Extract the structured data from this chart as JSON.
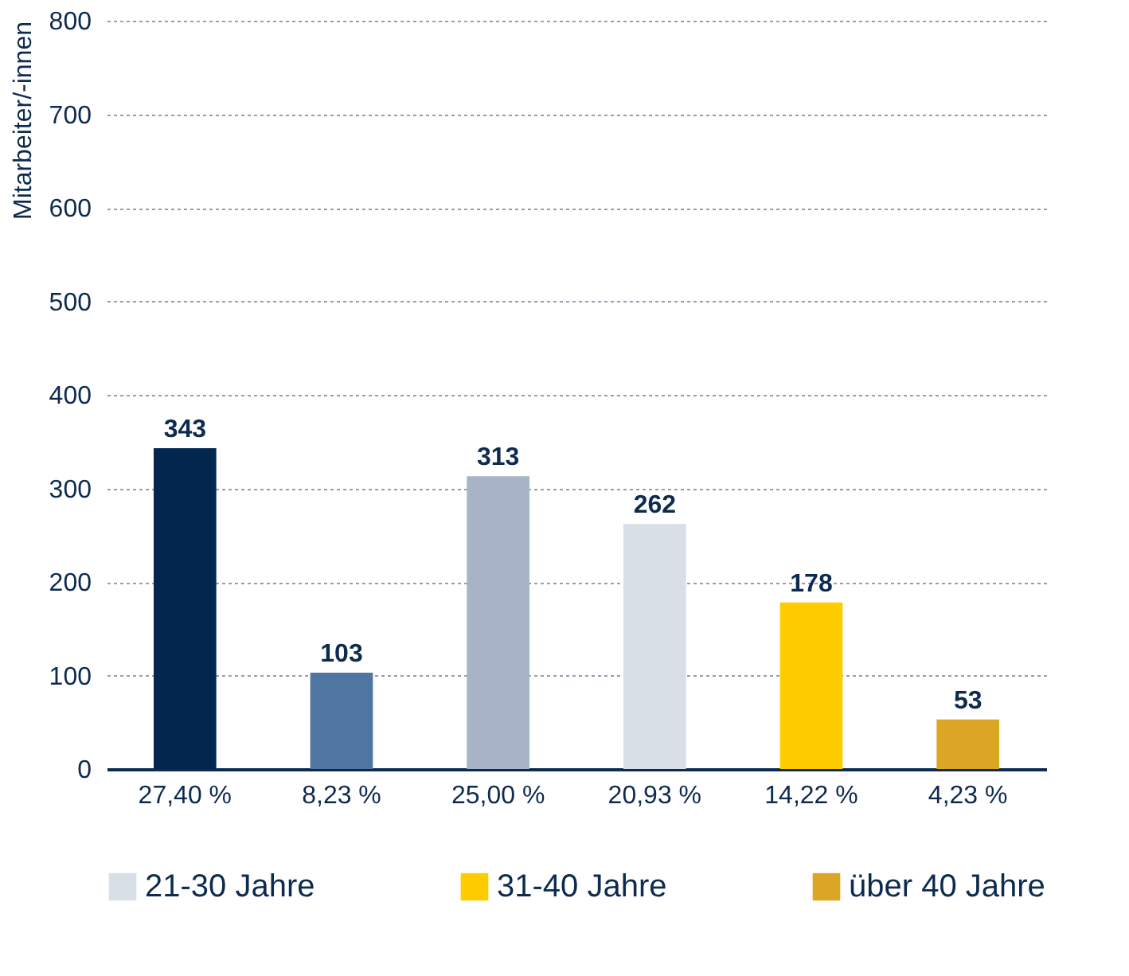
{
  "chart_data": {
    "type": "bar",
    "ylabel": "Mitarbeiter/-innen",
    "categories": [
      "27,40 %",
      "8,23 %",
      "25,00 %",
      "20,93 %",
      "14,22 %",
      "4,23 %"
    ],
    "series": [
      {
        "color": "#02264d",
        "values": [
          343,
          null,
          null,
          null,
          null,
          null
        ]
      },
      {
        "color": "#4f75a1",
        "values": [
          null,
          103,
          null,
          null,
          null,
          null
        ]
      },
      {
        "color": "#a7b3c6",
        "values": [
          null,
          null,
          313,
          null,
          null,
          null
        ]
      },
      {
        "name": "21-30 Jahre",
        "color": "#d8dfe6",
        "values": [
          null,
          null,
          null,
          262,
          null,
          null
        ]
      },
      {
        "name": "31-40 Jahre",
        "color": "#ffcc00",
        "values": [
          null,
          null,
          null,
          null,
          178,
          null
        ]
      },
      {
        "name": "über 40 Jahre",
        "color": "#dba623",
        "values": [
          null,
          null,
          null,
          null,
          null,
          53
        ]
      }
    ],
    "ylim": [
      0,
      800
    ],
    "yticks": [
      0,
      100,
      200,
      300,
      400,
      500,
      600,
      700,
      800
    ],
    "grid": "y",
    "legend": "bottom",
    "data_labels": true
  }
}
